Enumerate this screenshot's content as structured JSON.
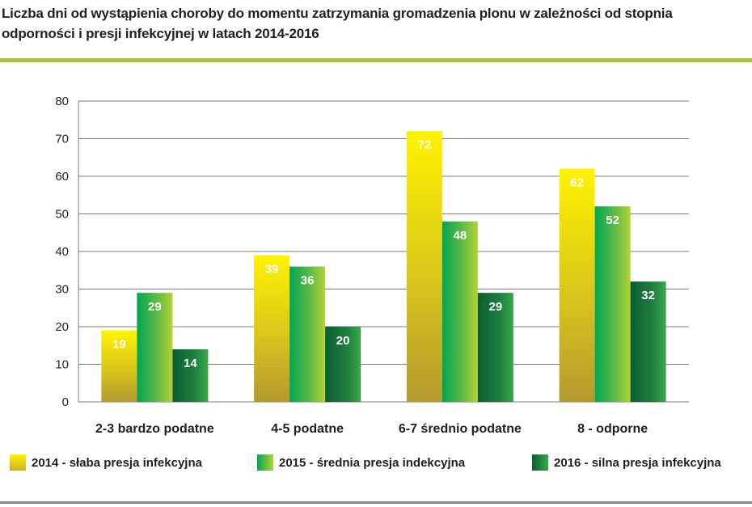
{
  "title": "Liczba dni od wystąpienia choroby do momentu zatrzymania gromadzenia plonu w zależności od stopnia odporności i presji infekcyjnej w latach 2014-2016",
  "colors": {
    "accent_rule": "#a9c23a",
    "series_2014": [
      "#fff200",
      "#b39a2e"
    ],
    "series_2015": [
      "#8dc63f",
      "#00a651"
    ],
    "series_2016": [
      "#39a84a",
      "#0b5e32"
    ]
  },
  "chart_data": {
    "type": "bar",
    "categories": [
      "2-3 bardzo podatne",
      "4-5 podatne",
      "6-7 średnio podatne",
      "8 - odporne"
    ],
    "series": [
      {
        "name": "2014 - słaba presja infekcyjna",
        "values": [
          19,
          39,
          72,
          62
        ]
      },
      {
        "name": "2015 - średnia presja indekcyjna",
        "values": [
          29,
          36,
          48,
          52
        ]
      },
      {
        "name": "2016 - silna presja infekcyjna",
        "values": [
          14,
          20,
          29,
          32
        ]
      }
    ],
    "ylim": [
      0,
      80
    ],
    "yticks": [
      0,
      10,
      20,
      30,
      40,
      50,
      60,
      70,
      80
    ],
    "grid": true,
    "legend_position": "bottom"
  }
}
